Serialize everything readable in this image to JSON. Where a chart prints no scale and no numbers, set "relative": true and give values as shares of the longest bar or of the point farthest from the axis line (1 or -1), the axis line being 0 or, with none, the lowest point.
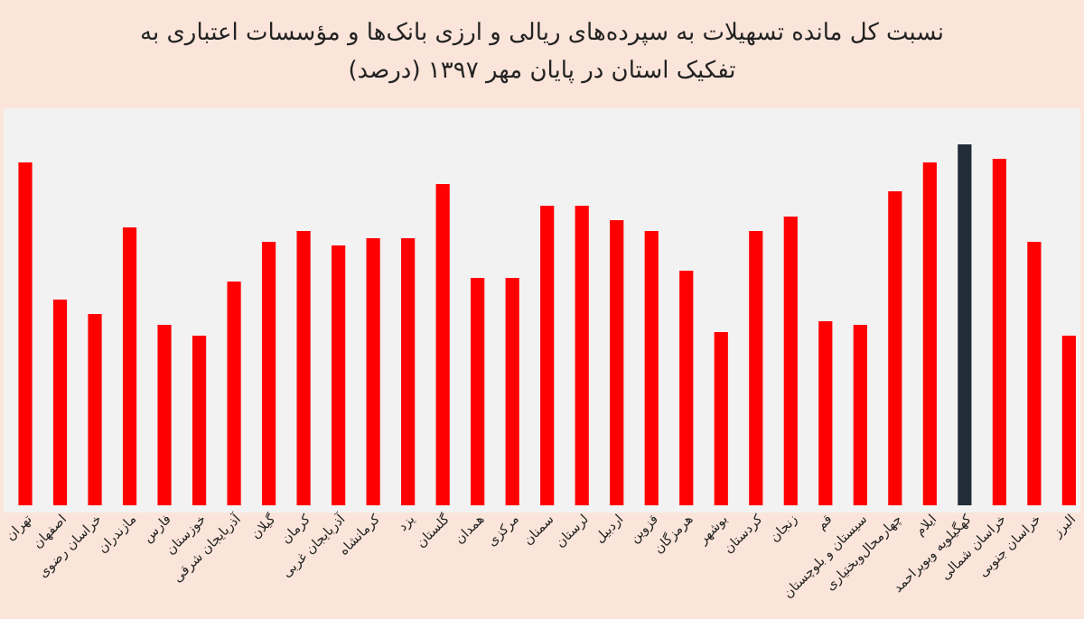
{
  "chart_data": {
    "type": "bar",
    "relative": true,
    "title": "نسبت کل مانده تسهیلات به سپرده‌های ریالی و ارزی بانک‌ها و مؤسسات اعتباری به تفکیک استان در پایان مهر ۱۳۹۷ (درصد)",
    "categories": [
      "تهران",
      "اصفهان",
      "خراسان رضوی",
      "مازندران",
      "فارس",
      "خوزستان",
      "آذربایجان شرقی",
      "گیلان",
      "کرمان",
      "آذربایجان غربی",
      "کرمانشاه",
      "یزد",
      "گلستان",
      "همدان",
      "مرکزی",
      "سمنان",
      "لرستان",
      "اردبیل",
      "قزوین",
      "هرمزگان",
      "بوشهر",
      "کردستان",
      "زنجان",
      "قم",
      "سیستان و بلوچستان",
      "چهارمحال‌وبختیاری",
      "ایلام",
      "کهگیلویه وبویراحمد",
      "خراسان شمالی",
      "خراسان جنوبی",
      "البرز"
    ],
    "values": [
      0.95,
      0.57,
      0.53,
      0.77,
      0.5,
      0.47,
      0.62,
      0.73,
      0.76,
      0.72,
      0.74,
      0.74,
      0.89,
      0.63,
      0.63,
      0.83,
      0.83,
      0.79,
      0.76,
      0.65,
      0.48,
      0.76,
      0.8,
      0.51,
      0.5,
      0.87,
      0.95,
      1,
      0.96,
      0.73,
      0.47
    ],
    "colors": [
      "#ff0000",
      "#ff0000",
      "#ff0000",
      "#ff0000",
      "#ff0000",
      "#ff0000",
      "#ff0000",
      "#ff0000",
      "#ff0000",
      "#ff0000",
      "#ff0000",
      "#ff0000",
      "#ff0000",
      "#ff0000",
      "#ff0000",
      "#ff0000",
      "#ff0000",
      "#ff0000",
      "#ff0000",
      "#ff0000",
      "#ff0000",
      "#ff0000",
      "#ff0000",
      "#ff0000",
      "#ff0000",
      "#ff0000",
      "#ff0000",
      "#222b38",
      "#ff0000",
      "#ff0000",
      "#ff0000"
    ]
  }
}
